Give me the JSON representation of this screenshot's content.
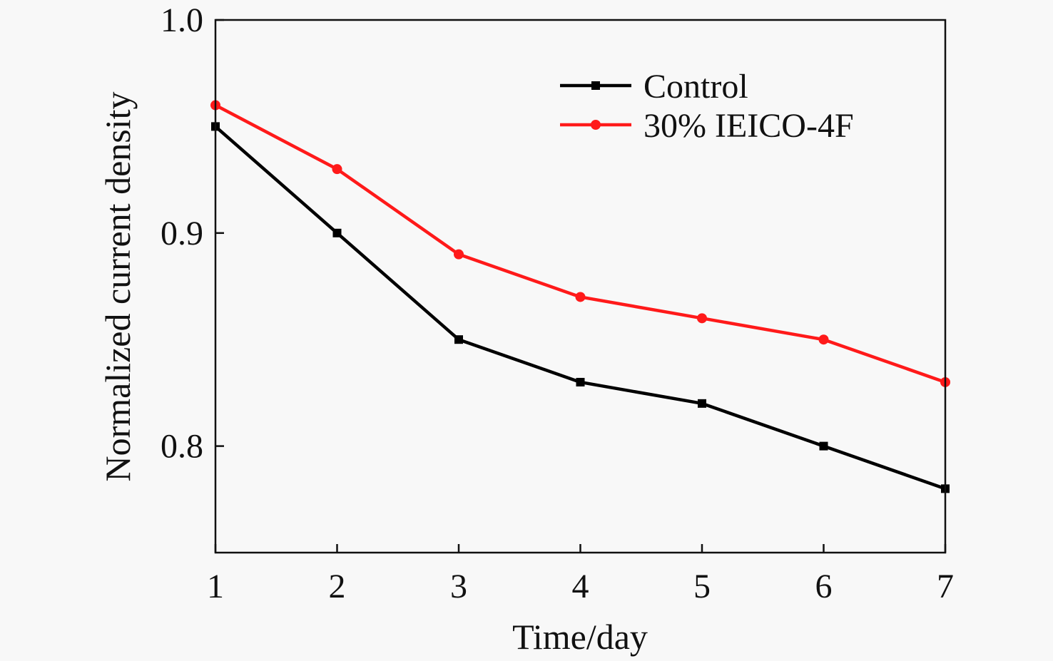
{
  "chart_data": {
    "type": "line",
    "title": "",
    "xlabel": "Time/day",
    "ylabel": "Normalized current density",
    "x": [
      1,
      2,
      3,
      4,
      5,
      6,
      7
    ],
    "xlim": [
      1,
      7
    ],
    "ylim": [
      0.75,
      1.0
    ],
    "xticks": [
      "1",
      "2",
      "3",
      "4",
      "5",
      "6",
      "7"
    ],
    "yticks": [
      {
        "value": 0.8,
        "label": "0.8"
      },
      {
        "value": 0.9,
        "label": "0.9"
      },
      {
        "value": 1.0,
        "label": "1.0"
      }
    ],
    "grid": false,
    "legend_position": "top-right",
    "series": [
      {
        "name": "Control",
        "color": "#000000",
        "marker": "square",
        "values": [
          0.95,
          0.9,
          0.85,
          0.83,
          0.82,
          0.8,
          0.78
        ]
      },
      {
        "name": "30% IEICO-4F",
        "color": "#ff1a1a",
        "marker": "circle",
        "values": [
          0.96,
          0.93,
          0.89,
          0.87,
          0.86,
          0.85,
          0.83
        ]
      }
    ]
  }
}
